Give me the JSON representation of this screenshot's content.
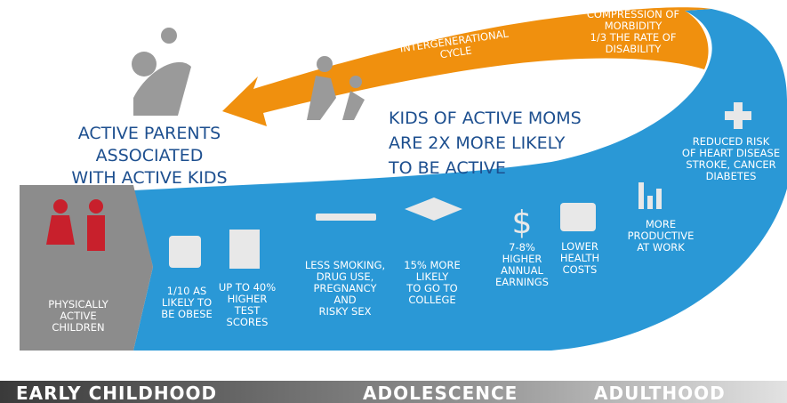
{
  "cycle_label": [
    "INTERGENERATIONAL",
    "CYCLE"
  ],
  "compression": [
    "COMPRESSION OF",
    "MORBIDITY",
    "1/3 THE RATE OF",
    "DISABILITY"
  ],
  "parents": [
    "ACTIVE PARENTS",
    "ASSOCIATED",
    "WITH ACTIVE KIDS"
  ],
  "moms": [
    "KIDS OF ACTIVE MOMS",
    "ARE 2X MORE LIKELY",
    "TO BE ACTIVE"
  ],
  "start": [
    "PHYSICALLY",
    "ACTIVE",
    "CHILDREN"
  ],
  "benefits": [
    [
      "1/10 AS",
      "LIKELY TO",
      "BE OBESE"
    ],
    [
      "UP TO 40%",
      "HIGHER",
      "TEST",
      "SCORES"
    ],
    [
      "LESS SMOKING,",
      "DRUG USE,",
      "PREGNANCY",
      "AND",
      "RISKY SEX"
    ],
    [
      "15% MORE",
      "LIKELY",
      "TO GO TO",
      "COLLEGE"
    ],
    [
      "7-8%",
      "HIGHER",
      "ANNUAL",
      "EARNINGS"
    ],
    [
      "LOWER",
      "HEALTH",
      "COSTS"
    ],
    [
      "MORE",
      "PRODUCTIVE",
      "AT WORK"
    ],
    [
      "REDUCED RISK",
      "OF HEART DISEASE",
      "STROKE, CANCER",
      "DIABETES"
    ]
  ],
  "stages": [
    "EARLY CHILDHOOD",
    "ADOLESCENCE",
    "ADULTHOOD"
  ]
}
